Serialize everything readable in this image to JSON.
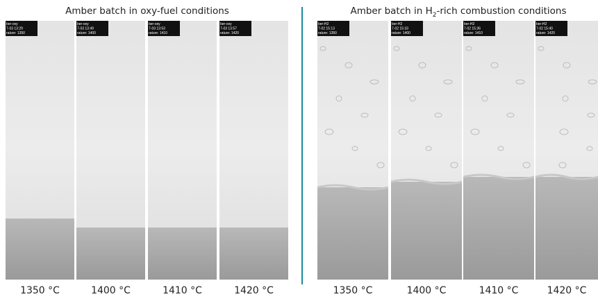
{
  "left": {
    "title": "Amber batch in oxy-fuel conditions",
    "panels": [
      {
        "overlay": [
          "ber-oxy",
          "7-03 13:29",
          "rature: 1350"
        ],
        "label": "1350 °C"
      },
      {
        "overlay": [
          "ber-oxy",
          "7-03 13:49",
          "rature: 1400"
        ],
        "label": "1400 °C"
      },
      {
        "overlay": [
          "ber-oxy",
          "7-03 13:53",
          "rature: 1410"
        ],
        "label": "1410 °C"
      },
      {
        "overlay": [
          "ber-oxy",
          "7-03 13:57",
          "rature: 1420"
        ],
        "label": "1420 °C"
      }
    ]
  },
  "right": {
    "title_parts": [
      "Amber batch in H",
      "2",
      "-rich combustion conditions"
    ],
    "panels": [
      {
        "overlay": [
          "ber-H2",
          "7-02 15:13",
          "rature: 1350"
        ],
        "label": "1350 °C"
      },
      {
        "overlay": [
          "ber-H2",
          "7-02 15:33",
          "rature: 1400"
        ],
        "label": "1400 °C"
      },
      {
        "overlay": [
          "ber-H2",
          "7-02 15:36",
          "rature: 1410"
        ],
        "label": "1410 °C"
      },
      {
        "overlay": [
          "ber-H2",
          "7-02 15:40",
          "rature: 1420"
        ],
        "label": "1420 °C"
      }
    ]
  }
}
